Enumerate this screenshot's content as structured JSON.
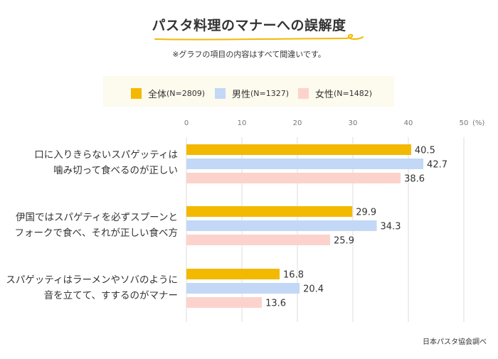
{
  "title": "パスタ料理のマナーへの誤解度",
  "note": "※グラフの項目の内容はすべて間違いです。",
  "source": "日本パスタ協会調べ",
  "colors": {
    "accent": "#f3b900",
    "all": "#f3b900",
    "male": "#c2d8f6",
    "female": "#fcd3cc",
    "grid": "#dddddd",
    "legend_bg": "#fdfaee"
  },
  "legend": [
    {
      "label": "全体",
      "n": "(N=2809)",
      "color": "#f3b900"
    },
    {
      "label": "男性",
      "n": "(N=1327)",
      "color": "#c2d8f6"
    },
    {
      "label": "女性",
      "n": "(N=1482)",
      "color": "#fcd3cc"
    }
  ],
  "chart_data": {
    "type": "bar",
    "orientation": "horizontal",
    "title": "パスタ料理のマナーへの誤解度",
    "subtitle": "※グラフの項目の内容はすべて間違いです。",
    "xlabel": "(%)",
    "ylabel": "",
    "xlim": [
      0,
      50
    ],
    "ticks": [
      "0",
      "10",
      "20",
      "30",
      "40",
      "50"
    ],
    "tick_values": [
      0,
      10,
      20,
      30,
      40,
      50
    ],
    "unit_label": "(%)",
    "grid": true,
    "legend_position": "top",
    "categories": [
      [
        "口に入りきらないスパゲッティは",
        "噛み切って食べるのが正しい"
      ],
      [
        "伊国ではスパゲティを必ずスプーンと",
        "フォークで食べ、それが正しい食べ方"
      ],
      [
        "スパゲッティはラーメンやソバのように",
        "音を立てて、すするのがマナー"
      ]
    ],
    "series": [
      {
        "name": "全体(N=2809)",
        "color": "#f3b900",
        "values": [
          40.5,
          29.9,
          16.8
        ],
        "labels": [
          "40.5",
          "29.9",
          "16.8"
        ]
      },
      {
        "name": "男性(N=1327)",
        "color": "#c2d8f6",
        "values": [
          42.7,
          34.3,
          20.4
        ],
        "labels": [
          "42.7",
          "34.3",
          "20.4"
        ]
      },
      {
        "name": "女性(N=1482)",
        "color": "#fcd3cc",
        "values": [
          38.6,
          25.9,
          13.6
        ],
        "labels": [
          "38.6",
          "25.9",
          "13.6"
        ]
      }
    ]
  }
}
